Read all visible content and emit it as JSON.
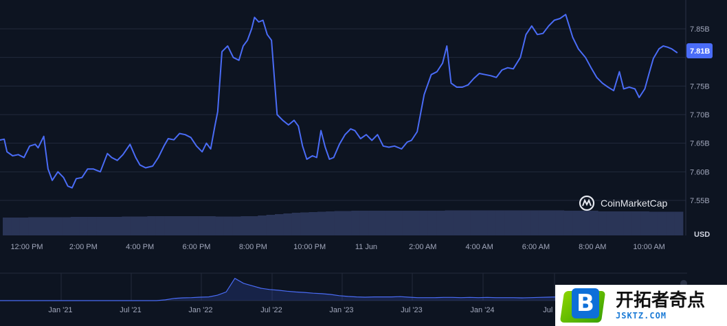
{
  "chart_data": [
    {
      "type": "line",
      "title": "",
      "xlabel": "",
      "ylabel": "",
      "unit": "USD",
      "current_value_label": "7.81B",
      "ylim": [
        7.53,
        7.89
      ],
      "y_ticks": [
        {
          "value": 7.55,
          "label": "7.55B"
        },
        {
          "value": 7.6,
          "label": "7.60B"
        },
        {
          "value": 7.65,
          "label": "7.65B"
        },
        {
          "value": 7.7,
          "label": "7.70B"
        },
        {
          "value": 7.75,
          "label": "7.75B"
        },
        {
          "value": 7.8,
          "label": ""
        },
        {
          "value": 7.85,
          "label": "7.85B"
        }
      ],
      "x_ticks": [
        {
          "hours": 12,
          "label": "12:00 PM"
        },
        {
          "hours": 14,
          "label": "2:00 PM"
        },
        {
          "hours": 16,
          "label": "4:00 PM"
        },
        {
          "hours": 18,
          "label": "6:00 PM"
        },
        {
          "hours": 20,
          "label": "8:00 PM"
        },
        {
          "hours": 22,
          "label": "10:00 PM"
        },
        {
          "hours": 24,
          "label": "11 Jun"
        },
        {
          "hours": 26,
          "label": "2:00 AM"
        },
        {
          "hours": 28,
          "label": "4:00 AM"
        },
        {
          "hours": 30,
          "label": "6:00 AM"
        },
        {
          "hours": 32,
          "label": "8:00 AM"
        },
        {
          "hours": 34,
          "label": "10:00 AM"
        }
      ],
      "xlim": [
        11.0,
        35.0
      ],
      "series": [
        {
          "color": "#4a6cf7",
          "points": [
            [
              11.0,
              7.655
            ],
            [
              11.2,
              7.657
            ],
            [
              11.3,
              7.635
            ],
            [
              11.5,
              7.628
            ],
            [
              11.7,
              7.63
            ],
            [
              11.9,
              7.625
            ],
            [
              12.1,
              7.645
            ],
            [
              12.3,
              7.648
            ],
            [
              12.4,
              7.642
            ],
            [
              12.6,
              7.662
            ],
            [
              12.75,
              7.605
            ],
            [
              12.9,
              7.585
            ],
            [
              13.1,
              7.6
            ],
            [
              13.3,
              7.59
            ],
            [
              13.45,
              7.575
            ],
            [
              13.6,
              7.572
            ],
            [
              13.75,
              7.588
            ],
            [
              13.95,
              7.59
            ],
            [
              14.15,
              7.605
            ],
            [
              14.35,
              7.605
            ],
            [
              14.6,
              7.6
            ],
            [
              14.85,
              7.632
            ],
            [
              15.0,
              7.625
            ],
            [
              15.2,
              7.62
            ],
            [
              15.4,
              7.63
            ],
            [
              15.65,
              7.648
            ],
            [
              15.85,
              7.625
            ],
            [
              16.0,
              7.612
            ],
            [
              16.2,
              7.607
            ],
            [
              16.45,
              7.61
            ],
            [
              16.65,
              7.625
            ],
            [
              16.85,
              7.645
            ],
            [
              17.0,
              7.658
            ],
            [
              17.2,
              7.656
            ],
            [
              17.4,
              7.667
            ],
            [
              17.6,
              7.665
            ],
            [
              17.8,
              7.66
            ],
            [
              18.0,
              7.645
            ],
            [
              18.2,
              7.635
            ],
            [
              18.35,
              7.65
            ],
            [
              18.5,
              7.64
            ],
            [
              18.65,
              7.68
            ],
            [
              18.75,
              7.705
            ],
            [
              18.9,
              7.81
            ],
            [
              19.1,
              7.82
            ],
            [
              19.3,
              7.8
            ],
            [
              19.5,
              7.795
            ],
            [
              19.65,
              7.82
            ],
            [
              19.8,
              7.83
            ],
            [
              19.95,
              7.85
            ],
            [
              20.05,
              7.87
            ],
            [
              20.2,
              7.862
            ],
            [
              20.35,
              7.865
            ],
            [
              20.5,
              7.84
            ],
            [
              20.65,
              7.83
            ],
            [
              20.85,
              7.7
            ],
            [
              21.05,
              7.69
            ],
            [
              21.25,
              7.682
            ],
            [
              21.45,
              7.69
            ],
            [
              21.6,
              7.68
            ],
            [
              21.75,
              7.645
            ],
            [
              21.9,
              7.622
            ],
            [
              22.1,
              7.628
            ],
            [
              22.25,
              7.625
            ],
            [
              22.4,
              7.672
            ],
            [
              22.55,
              7.643
            ],
            [
              22.7,
              7.622
            ],
            [
              22.85,
              7.625
            ],
            [
              23.05,
              7.648
            ],
            [
              23.25,
              7.665
            ],
            [
              23.45,
              7.675
            ],
            [
              23.6,
              7.672
            ],
            [
              23.8,
              7.658
            ],
            [
              24.0,
              7.665
            ],
            [
              24.2,
              7.655
            ],
            [
              24.4,
              7.665
            ],
            [
              24.6,
              7.645
            ],
            [
              24.8,
              7.643
            ],
            [
              25.0,
              7.645
            ],
            [
              25.25,
              7.64
            ],
            [
              25.45,
              7.652
            ],
            [
              25.6,
              7.655
            ],
            [
              25.8,
              7.67
            ],
            [
              26.05,
              7.735
            ],
            [
              26.3,
              7.77
            ],
            [
              26.5,
              7.775
            ],
            [
              26.7,
              7.79
            ],
            [
              26.85,
              7.82
            ],
            [
              27.0,
              7.755
            ],
            [
              27.2,
              7.748
            ],
            [
              27.4,
              7.748
            ],
            [
              27.6,
              7.752
            ],
            [
              27.8,
              7.763
            ],
            [
              28.0,
              7.772
            ],
            [
              28.2,
              7.77
            ],
            [
              28.4,
              7.768
            ],
            [
              28.6,
              7.765
            ],
            [
              28.8,
              7.778
            ],
            [
              29.0,
              7.782
            ],
            [
              29.2,
              7.78
            ],
            [
              29.45,
              7.8
            ],
            [
              29.65,
              7.84
            ],
            [
              29.85,
              7.855
            ],
            [
              30.05,
              7.84
            ],
            [
              30.25,
              7.842
            ],
            [
              30.45,
              7.855
            ],
            [
              30.65,
              7.865
            ],
            [
              30.85,
              7.868
            ],
            [
              31.05,
              7.875
            ],
            [
              31.3,
              7.835
            ],
            [
              31.5,
              7.815
            ],
            [
              31.75,
              7.8
            ],
            [
              31.95,
              7.782
            ],
            [
              32.15,
              7.765
            ],
            [
              32.35,
              7.755
            ],
            [
              32.55,
              7.748
            ],
            [
              32.75,
              7.742
            ],
            [
              32.95,
              7.775
            ],
            [
              33.1,
              7.745
            ],
            [
              33.3,
              7.748
            ],
            [
              33.5,
              7.745
            ],
            [
              33.65,
              7.73
            ],
            [
              33.85,
              7.745
            ],
            [
              34.0,
              7.772
            ],
            [
              34.15,
              7.798
            ],
            [
              34.35,
              7.815
            ],
            [
              34.5,
              7.82
            ],
            [
              34.65,
              7.818
            ],
            [
              34.8,
              7.815
            ],
            [
              35.0,
              7.808
            ]
          ]
        }
      ],
      "volume_series": {
        "color": "#2a3557",
        "values": [
          0.52,
          0.52,
          0.52,
          0.53,
          0.53,
          0.53,
          0.53,
          0.53,
          0.54,
          0.54,
          0.54,
          0.54,
          0.54,
          0.54,
          0.55,
          0.55,
          0.55,
          0.56,
          0.56,
          0.56,
          0.56,
          0.56,
          0.56,
          0.56,
          0.56,
          0.55,
          0.55,
          0.55,
          0.56,
          0.56,
          0.58,
          0.6,
          0.62,
          0.64,
          0.66,
          0.67,
          0.68,
          0.69,
          0.7,
          0.71,
          0.71,
          0.72,
          0.72,
          0.72,
          0.72,
          0.72,
          0.72,
          0.72,
          0.72,
          0.72,
          0.72,
          0.72,
          0.73,
          0.73,
          0.73,
          0.73,
          0.73,
          0.73,
          0.73,
          0.73,
          0.73,
          0.73,
          0.73,
          0.73,
          0.73,
          0.73,
          0.72,
          0.72,
          0.72,
          0.72,
          0.7,
          0.7,
          0.7,
          0.7,
          0.7,
          0.7,
          0.69,
          0.69,
          0.69,
          0.69
        ]
      },
      "watermark": "CoinMarketCap"
    },
    {
      "type": "area",
      "title": "",
      "x_ticks": [
        "Jan '21",
        "Jul '21",
        "Jan '22",
        "Jul '22",
        "Jan '23",
        "Jul '23",
        "Jan '24",
        "Jul '24"
      ],
      "series": [
        {
          "color": "#4a6cf7",
          "values": [
            0,
            0,
            0,
            0,
            0,
            0,
            0,
            0,
            0,
            0,
            0,
            0,
            0,
            0,
            0,
            0,
            0,
            0,
            0,
            0.03,
            0.09,
            0.11,
            0.12,
            0.14,
            0.15,
            0.22,
            0.35,
            0.9,
            0.7,
            0.6,
            0.5,
            0.45,
            0.42,
            0.38,
            0.35,
            0.33,
            0.3,
            0.28,
            0.25,
            0.2,
            0.17,
            0.15,
            0.14,
            0.15,
            0.15,
            0.15,
            0.16,
            0.14,
            0.12,
            0.12,
            0.12,
            0.13,
            0.13,
            0.12,
            0.13,
            0.12,
            0.13,
            0.12,
            0.12,
            0.12,
            0.11,
            0.12,
            0.13,
            0.14,
            0.15,
            0.16,
            0.16,
            0.15,
            0.15,
            0.14,
            0.15,
            0.16,
            0.18,
            0.45,
            0.5,
            0.48,
            0.45,
            0.44,
            0.42,
            0.4
          ]
        }
      ]
    }
  ],
  "branding": {
    "overlay_logo_letter": "B",
    "overlay_cn": "开拓者奇点",
    "overlay_url": "JSKTZ.COM"
  }
}
